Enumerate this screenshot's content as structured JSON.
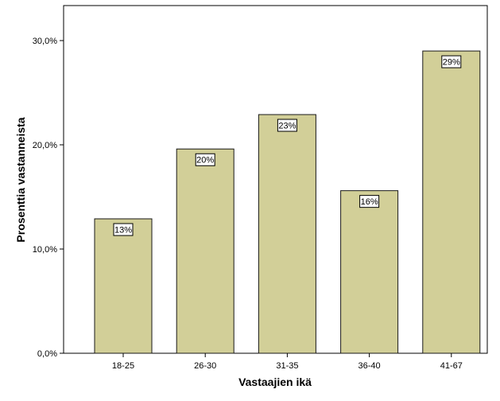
{
  "chart_data": {
    "type": "bar",
    "categories": [
      "18-25",
      "26-30",
      "31-35",
      "36-40",
      "41-67"
    ],
    "values": [
      12.9,
      19.6,
      22.9,
      15.6,
      29.0
    ],
    "data_labels": [
      "13%",
      "20%",
      "23%",
      "16%",
      "29%"
    ],
    "xlabel": "Vastaajien ikä",
    "ylabel": "Prosenttia vastanneista",
    "ylim": [
      0,
      30.1
    ],
    "yticks": [
      0,
      10,
      20,
      30
    ],
    "ytick_labels": [
      "0,0%",
      "10,0%",
      "20,0%",
      "30,0%"
    ],
    "grid": false,
    "colors": {
      "bar_fill": "#d2cf98",
      "bar_stroke": "#1a1a1a",
      "axis": "#000000"
    }
  }
}
